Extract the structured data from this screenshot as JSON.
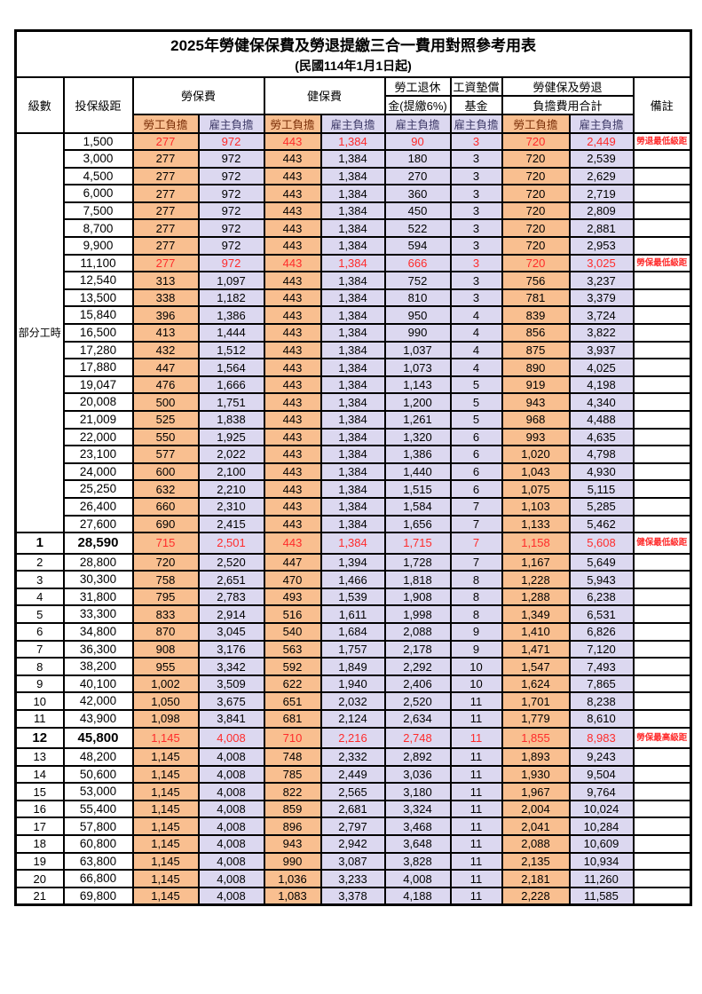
{
  "page": {
    "title": "2025年勞健保保費及勞退提繳三合一費用對照參考用表",
    "subtitle": "(民國114年1月1日起)"
  },
  "header": {
    "level": "級數",
    "salary": "投保級距",
    "labor_fee": "勞保費",
    "health_fee": "健保費",
    "pension_l1": "勞工退休",
    "pension_l2": "金(提繳6%)",
    "wage_l1": "工資墊償",
    "wage_l2": "基金",
    "total_l1": "勞健保及勞退",
    "total_l2": "負擔費用合計",
    "remark": "備註",
    "employee": "勞工負擔",
    "employer": "雇主負擔"
  },
  "part_time_label": "部分工時",
  "part_time_rowspan": 23,
  "colors": {
    "employee_column_bg": "#f9bf90",
    "employer_column_bg": "#dcd8f0",
    "highlight_text": "#ff2b2b",
    "border": "#000000"
  },
  "rows": [
    {
      "lv": "",
      "sal": "1,500",
      "v": [
        "277",
        "972",
        "443",
        "1,384",
        "90",
        "3",
        "720",
        "2,449"
      ],
      "note": "勞退最低級距",
      "red": true,
      "big": false
    },
    {
      "lv": "",
      "sal": "3,000",
      "v": [
        "277",
        "972",
        "443",
        "1,384",
        "180",
        "3",
        "720",
        "2,539"
      ],
      "note": "",
      "red": false,
      "big": false
    },
    {
      "lv": "",
      "sal": "4,500",
      "v": [
        "277",
        "972",
        "443",
        "1,384",
        "270",
        "3",
        "720",
        "2,629"
      ],
      "note": "",
      "red": false,
      "big": false
    },
    {
      "lv": "",
      "sal": "6,000",
      "v": [
        "277",
        "972",
        "443",
        "1,384",
        "360",
        "3",
        "720",
        "2,719"
      ],
      "note": "",
      "red": false,
      "big": false
    },
    {
      "lv": "",
      "sal": "7,500",
      "v": [
        "277",
        "972",
        "443",
        "1,384",
        "450",
        "3",
        "720",
        "2,809"
      ],
      "note": "",
      "red": false,
      "big": false
    },
    {
      "lv": "",
      "sal": "8,700",
      "v": [
        "277",
        "972",
        "443",
        "1,384",
        "522",
        "3",
        "720",
        "2,881"
      ],
      "note": "",
      "red": false,
      "big": false
    },
    {
      "lv": "",
      "sal": "9,900",
      "v": [
        "277",
        "972",
        "443",
        "1,384",
        "594",
        "3",
        "720",
        "2,953"
      ],
      "note": "",
      "red": false,
      "big": false
    },
    {
      "lv": "",
      "sal": "11,100",
      "v": [
        "277",
        "972",
        "443",
        "1,384",
        "666",
        "3",
        "720",
        "3,025"
      ],
      "note": "勞保最低級距",
      "red": true,
      "big": false
    },
    {
      "lv": "",
      "sal": "12,540",
      "v": [
        "313",
        "1,097",
        "443",
        "1,384",
        "752",
        "3",
        "756",
        "3,237"
      ],
      "note": "",
      "red": false,
      "big": false
    },
    {
      "lv": "",
      "sal": "13,500",
      "v": [
        "338",
        "1,182",
        "443",
        "1,384",
        "810",
        "3",
        "781",
        "3,379"
      ],
      "note": "",
      "red": false,
      "big": false
    },
    {
      "lv": "",
      "sal": "15,840",
      "v": [
        "396",
        "1,386",
        "443",
        "1,384",
        "950",
        "4",
        "839",
        "3,724"
      ],
      "note": "",
      "red": false,
      "big": false
    },
    {
      "lv": "",
      "sal": "16,500",
      "v": [
        "413",
        "1,444",
        "443",
        "1,384",
        "990",
        "4",
        "856",
        "3,822"
      ],
      "note": "",
      "red": false,
      "big": false
    },
    {
      "lv": "",
      "sal": "17,280",
      "v": [
        "432",
        "1,512",
        "443",
        "1,384",
        "1,037",
        "4",
        "875",
        "3,937"
      ],
      "note": "",
      "red": false,
      "big": false
    },
    {
      "lv": "",
      "sal": "17,880",
      "v": [
        "447",
        "1,564",
        "443",
        "1,384",
        "1,073",
        "4",
        "890",
        "4,025"
      ],
      "note": "",
      "red": false,
      "big": false
    },
    {
      "lv": "",
      "sal": "19,047",
      "v": [
        "476",
        "1,666",
        "443",
        "1,384",
        "1,143",
        "5",
        "919",
        "4,198"
      ],
      "note": "",
      "red": false,
      "big": false
    },
    {
      "lv": "",
      "sal": "20,008",
      "v": [
        "500",
        "1,751",
        "443",
        "1,384",
        "1,200",
        "5",
        "943",
        "4,340"
      ],
      "note": "",
      "red": false,
      "big": false
    },
    {
      "lv": "",
      "sal": "21,009",
      "v": [
        "525",
        "1,838",
        "443",
        "1,384",
        "1,261",
        "5",
        "968",
        "4,488"
      ],
      "note": "",
      "red": false,
      "big": false
    },
    {
      "lv": "",
      "sal": "22,000",
      "v": [
        "550",
        "1,925",
        "443",
        "1,384",
        "1,320",
        "6",
        "993",
        "4,635"
      ],
      "note": "",
      "red": false,
      "big": false
    },
    {
      "lv": "",
      "sal": "23,100",
      "v": [
        "577",
        "2,022",
        "443",
        "1,384",
        "1,386",
        "6",
        "1,020",
        "4,798"
      ],
      "note": "",
      "red": false,
      "big": false
    },
    {
      "lv": "",
      "sal": "24,000",
      "v": [
        "600",
        "2,100",
        "443",
        "1,384",
        "1,440",
        "6",
        "1,043",
        "4,930"
      ],
      "note": "",
      "red": false,
      "big": false
    },
    {
      "lv": "",
      "sal": "25,250",
      "v": [
        "632",
        "2,210",
        "443",
        "1,384",
        "1,515",
        "6",
        "1,075",
        "5,115"
      ],
      "note": "",
      "red": false,
      "big": false
    },
    {
      "lv": "",
      "sal": "26,400",
      "v": [
        "660",
        "2,310",
        "443",
        "1,384",
        "1,584",
        "7",
        "1,103",
        "5,285"
      ],
      "note": "",
      "red": false,
      "big": false
    },
    {
      "lv": "",
      "sal": "27,600",
      "v": [
        "690",
        "2,415",
        "443",
        "1,384",
        "1,656",
        "7",
        "1,133",
        "5,462"
      ],
      "note": "",
      "red": false,
      "big": false
    },
    {
      "lv": "1",
      "sal": "28,590",
      "v": [
        "715",
        "2,501",
        "443",
        "1,384",
        "1,715",
        "7",
        "1,158",
        "5,608"
      ],
      "note": "健保最低級距",
      "red": true,
      "big": true
    },
    {
      "lv": "2",
      "sal": "28,800",
      "v": [
        "720",
        "2,520",
        "447",
        "1,394",
        "1,728",
        "7",
        "1,167",
        "5,649"
      ],
      "note": "",
      "red": false,
      "big": false
    },
    {
      "lv": "3",
      "sal": "30,300",
      "v": [
        "758",
        "2,651",
        "470",
        "1,466",
        "1,818",
        "8",
        "1,228",
        "5,943"
      ],
      "note": "",
      "red": false,
      "big": false
    },
    {
      "lv": "4",
      "sal": "31,800",
      "v": [
        "795",
        "2,783",
        "493",
        "1,539",
        "1,908",
        "8",
        "1,288",
        "6,238"
      ],
      "note": "",
      "red": false,
      "big": false
    },
    {
      "lv": "5",
      "sal": "33,300",
      "v": [
        "833",
        "2,914",
        "516",
        "1,611",
        "1,998",
        "8",
        "1,349",
        "6,531"
      ],
      "note": "",
      "red": false,
      "big": false
    },
    {
      "lv": "6",
      "sal": "34,800",
      "v": [
        "870",
        "3,045",
        "540",
        "1,684",
        "2,088",
        "9",
        "1,410",
        "6,826"
      ],
      "note": "",
      "red": false,
      "big": false
    },
    {
      "lv": "7",
      "sal": "36,300",
      "v": [
        "908",
        "3,176",
        "563",
        "1,757",
        "2,178",
        "9",
        "1,471",
        "7,120"
      ],
      "note": "",
      "red": false,
      "big": false
    },
    {
      "lv": "8",
      "sal": "38,200",
      "v": [
        "955",
        "3,342",
        "592",
        "1,849",
        "2,292",
        "10",
        "1,547",
        "7,493"
      ],
      "note": "",
      "red": false,
      "big": false
    },
    {
      "lv": "9",
      "sal": "40,100",
      "v": [
        "1,002",
        "3,509",
        "622",
        "1,940",
        "2,406",
        "10",
        "1,624",
        "7,865"
      ],
      "note": "",
      "red": false,
      "big": false
    },
    {
      "lv": "10",
      "sal": "42,000",
      "v": [
        "1,050",
        "3,675",
        "651",
        "2,032",
        "2,520",
        "11",
        "1,701",
        "8,238"
      ],
      "note": "",
      "red": false,
      "big": false
    },
    {
      "lv": "11",
      "sal": "43,900",
      "v": [
        "1,098",
        "3,841",
        "681",
        "2,124",
        "2,634",
        "11",
        "1,779",
        "8,610"
      ],
      "note": "",
      "red": false,
      "big": false
    },
    {
      "lv": "12",
      "sal": "45,800",
      "v": [
        "1,145",
        "4,008",
        "710",
        "2,216",
        "2,748",
        "11",
        "1,855",
        "8,983"
      ],
      "note": "勞保最高級距",
      "red": true,
      "big": true
    },
    {
      "lv": "13",
      "sal": "48,200",
      "v": [
        "1,145",
        "4,008",
        "748",
        "2,332",
        "2,892",
        "11",
        "1,893",
        "9,243"
      ],
      "note": "",
      "red": false,
      "big": false
    },
    {
      "lv": "14",
      "sal": "50,600",
      "v": [
        "1,145",
        "4,008",
        "785",
        "2,449",
        "3,036",
        "11",
        "1,930",
        "9,504"
      ],
      "note": "",
      "red": false,
      "big": false
    },
    {
      "lv": "15",
      "sal": "53,000",
      "v": [
        "1,145",
        "4,008",
        "822",
        "2,565",
        "3,180",
        "11",
        "1,967",
        "9,764"
      ],
      "note": "",
      "red": false,
      "big": false
    },
    {
      "lv": "16",
      "sal": "55,400",
      "v": [
        "1,145",
        "4,008",
        "859",
        "2,681",
        "3,324",
        "11",
        "2,004",
        "10,024"
      ],
      "note": "",
      "red": false,
      "big": false
    },
    {
      "lv": "17",
      "sal": "57,800",
      "v": [
        "1,145",
        "4,008",
        "896",
        "2,797",
        "3,468",
        "11",
        "2,041",
        "10,284"
      ],
      "note": "",
      "red": false,
      "big": false
    },
    {
      "lv": "18",
      "sal": "60,800",
      "v": [
        "1,145",
        "4,008",
        "943",
        "2,942",
        "3,648",
        "11",
        "2,088",
        "10,609"
      ],
      "note": "",
      "red": false,
      "big": false
    },
    {
      "lv": "19",
      "sal": "63,800",
      "v": [
        "1,145",
        "4,008",
        "990",
        "3,087",
        "3,828",
        "11",
        "2,135",
        "10,934"
      ],
      "note": "",
      "red": false,
      "big": false
    },
    {
      "lv": "20",
      "sal": "66,800",
      "v": [
        "1,145",
        "4,008",
        "1,036",
        "3,233",
        "4,008",
        "11",
        "2,181",
        "11,260"
      ],
      "note": "",
      "red": false,
      "big": false
    },
    {
      "lv": "21",
      "sal": "69,800",
      "v": [
        "1,145",
        "4,008",
        "1,083",
        "3,378",
        "4,188",
        "11",
        "2,228",
        "11,585"
      ],
      "note": "",
      "red": false,
      "big": false
    }
  ]
}
